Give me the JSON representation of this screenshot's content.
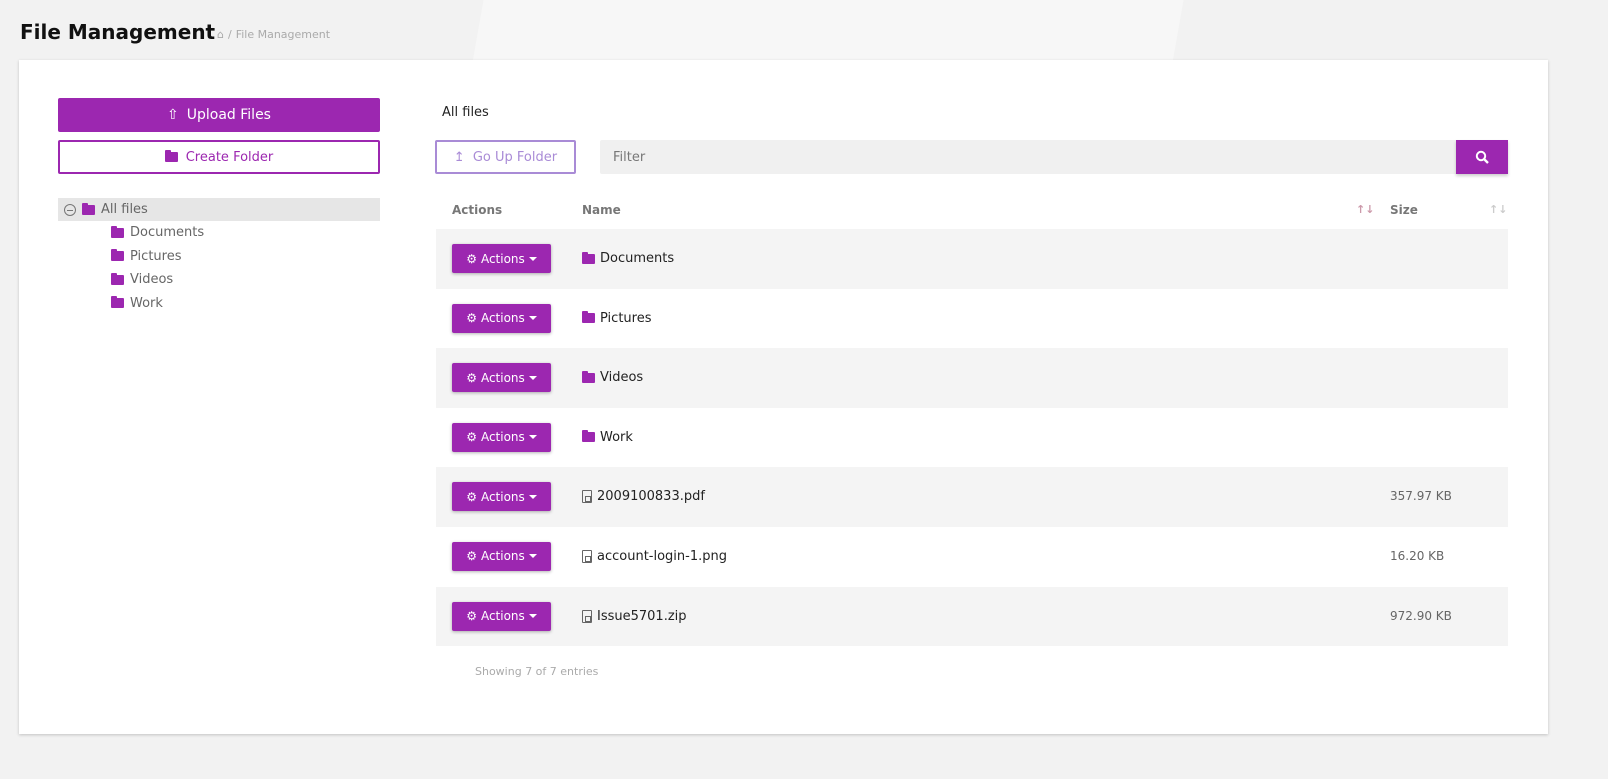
{
  "header": {
    "title": "File Management",
    "breadcrumb": "File Management"
  },
  "left": {
    "upload_label": "Upload Files",
    "create_folder_label": "Create Folder",
    "tree": {
      "root": "All files",
      "children": [
        "Documents",
        "Pictures",
        "Videos",
        "Work"
      ]
    }
  },
  "main": {
    "current_folder": "All files",
    "go_up_label": "Go Up Folder",
    "filter_placeholder": "Filter",
    "columns": {
      "actions": "Actions",
      "name": "Name",
      "size": "Size"
    },
    "rows": [
      {
        "type": "folder",
        "name": "Documents",
        "size": ""
      },
      {
        "type": "folder",
        "name": "Pictures",
        "size": ""
      },
      {
        "type": "folder",
        "name": "Videos",
        "size": ""
      },
      {
        "type": "folder",
        "name": "Work",
        "size": ""
      },
      {
        "type": "pdf",
        "name": "2009100833.pdf",
        "size": "357.97 KB"
      },
      {
        "type": "image",
        "name": "account-login-1.png",
        "size": "16.20 KB"
      },
      {
        "type": "archive",
        "name": "Issue5701.zip",
        "size": "972.90 KB"
      }
    ],
    "action_label": "Actions",
    "footer": "Showing 7 of 7 entries"
  },
  "colors": {
    "accent": "#9c27b0",
    "secondary": "#a98bd6"
  }
}
